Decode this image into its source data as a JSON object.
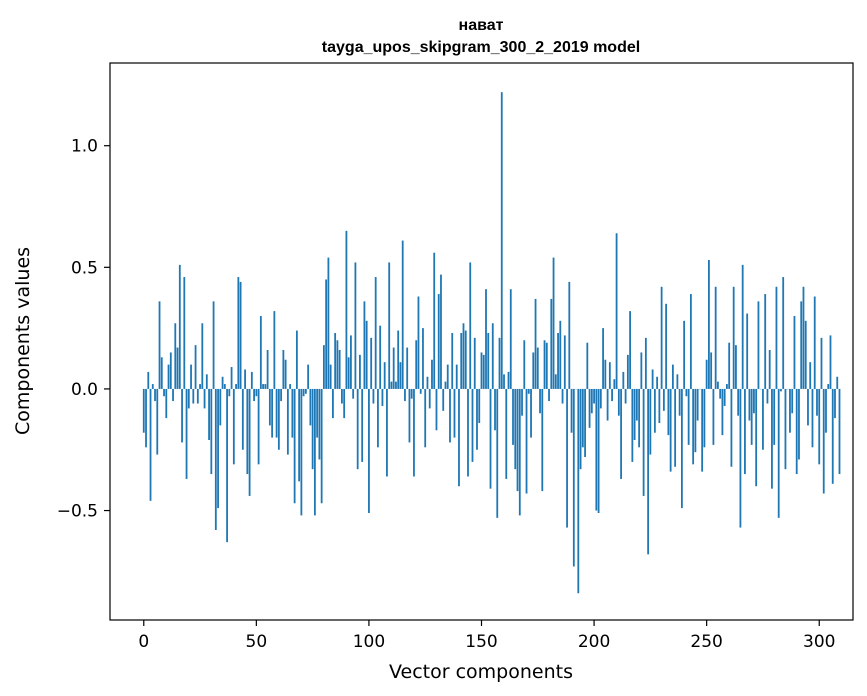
{
  "chart_data": {
    "type": "bar",
    "title": "нават",
    "subtitle": "tayga_upos_skipgram_300_2_2019 model",
    "xlabel": "Vector components",
    "ylabel": "Components values",
    "xlim": [
      -15,
      315
    ],
    "ylim": [
      -0.95,
      1.34
    ],
    "xticks": [
      0,
      50,
      100,
      150,
      200,
      250,
      300
    ],
    "xtick_labels": [
      "0",
      "50",
      "100",
      "150",
      "200",
      "250",
      "300"
    ],
    "yticks": [
      -0.5,
      0.0,
      0.5,
      1.0
    ],
    "ytick_labels": [
      "−0.5",
      "0.0",
      "0.5",
      "1.0"
    ],
    "grid": false,
    "color": "#1f77b4",
    "x_start": 0,
    "values": [
      -0.18,
      -0.24,
      0.07,
      -0.46,
      0.02,
      -0.05,
      -0.27,
      0.36,
      0.13,
      -0.03,
      -0.12,
      0.1,
      0.15,
      -0.05,
      0.27,
      0.17,
      0.51,
      -0.22,
      0.46,
      -0.37,
      -0.08,
      0.1,
      -0.06,
      0.18,
      -0.06,
      0.02,
      0.27,
      -0.08,
      0.06,
      -0.21,
      -0.35,
      0.36,
      -0.58,
      -0.49,
      -0.15,
      0.05,
      0.02,
      -0.63,
      -0.03,
      0.09,
      -0.31,
      0.02,
      0.46,
      0.44,
      -0.25,
      0.08,
      -0.35,
      -0.44,
      0.07,
      -0.05,
      -0.03,
      -0.31,
      0.3,
      0.02,
      0.02,
      0.16,
      -0.15,
      -0.2,
      0.32,
      -0.2,
      -0.25,
      -0.05,
      0.16,
      0.12,
      -0.27,
      0.02,
      -0.2,
      -0.47,
      0.24,
      -0.38,
      -0.52,
      -0.03,
      -0.02,
      0.1,
      -0.15,
      -0.33,
      -0.52,
      -0.2,
      -0.29,
      -0.47,
      0.18,
      0.45,
      0.54,
      0.1,
      -0.12,
      0.23,
      0.2,
      0.16,
      -0.06,
      -0.12,
      0.65,
      0.13,
      0.22,
      -0.04,
      0.52,
      -0.33,
      0.14,
      -0.3,
      0.36,
      0.28,
      -0.51,
      0.21,
      -0.06,
      0.46,
      -0.24,
      0.26,
      -0.07,
      0.11,
      -0.36,
      0.52,
      0.03,
      0.17,
      0.03,
      0.24,
      0.11,
      0.61,
      -0.05,
      0.17,
      -0.22,
      -0.04,
      -0.36,
      0.2,
      0.38,
      -0.02,
      0.25,
      -0.24,
      0.05,
      -0.08,
      0.12,
      0.56,
      -0.17,
      0.39,
      0.47,
      -0.09,
      0.03,
      0.1,
      -0.22,
      0.23,
      -0.2,
      0.1,
      -0.4,
      0.23,
      0.27,
      0.24,
      -0.36,
      0.52,
      -0.3,
      0.21,
      -0.25,
      -0.14,
      0.15,
      0.14,
      0.41,
      0.23,
      -0.41,
      0.27,
      -0.17,
      -0.53,
      0.21,
      1.22,
      0.06,
      -0.37,
      0.07,
      0.41,
      -0.23,
      -0.33,
      -0.42,
      -0.52,
      -0.11,
      0.2,
      -0.43,
      -0.02,
      -0.2,
      0.15,
      0.37,
      0.17,
      -0.1,
      -0.42,
      0.2,
      0.19,
      -0.05,
      0.37,
      0.54,
      0.06,
      0.23,
      0.28,
      -0.06,
      0.22,
      -0.57,
      0.44,
      -0.18,
      -0.73,
      0.0,
      -0.84,
      -0.33,
      -0.24,
      -0.28,
      0.19,
      -0.16,
      -0.1,
      -0.06,
      -0.5,
      -0.51,
      -0.08,
      0.25,
      0.12,
      -0.13,
      0.11,
      -0.05,
      0.04,
      0.64,
      -0.11,
      -0.37,
      0.07,
      -0.06,
      0.14,
      0.32,
      -0.3,
      -0.21,
      -0.13,
      -0.24,
      0.15,
      -0.44,
      0.21,
      -0.68,
      -0.27,
      0.08,
      -0.18,
      0.05,
      -0.14,
      0.42,
      -0.09,
      0.35,
      -0.19,
      -0.34,
      0.1,
      -0.32,
      0.06,
      -0.11,
      -0.49,
      0.28,
      -0.03,
      -0.23,
      0.39,
      -0.31,
      -0.26,
      -0.13,
      0.0,
      -0.34,
      -0.24,
      0.12,
      0.53,
      0.15,
      -0.23,
      0.42,
      0.03,
      -0.04,
      -0.19,
      -0.07,
      0.02,
      0.19,
      -0.32,
      0.42,
      0.18,
      -0.11,
      -0.57,
      0.51,
      -0.35,
      0.31,
      -0.13,
      -0.23,
      -0.1,
      -0.4,
      0.36,
      0.0,
      -0.25,
      0.39,
      -0.06,
      0.16,
      -0.41,
      -0.23,
      0.42,
      -0.53,
      -0.01,
      0.46,
      -0.33,
      0.0,
      -0.18,
      -0.1,
      0.3,
      -0.35,
      -0.29,
      0.36,
      0.42,
      0.28,
      -0.15,
      0.11,
      -0.24,
      0.38,
      -0.11,
      -0.31,
      0.21,
      -0.43,
      -0.18,
      0.02,
      0.22,
      -0.39,
      -0.12,
      0.05,
      -0.35
    ]
  }
}
